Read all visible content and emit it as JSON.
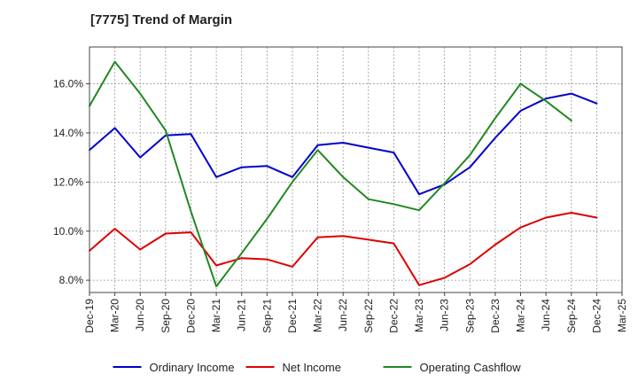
{
  "chart_data": {
    "type": "line",
    "title": "[7775]  Trend of Margin",
    "xlabel": "",
    "ylabel": "",
    "categories": [
      "Dec-19",
      "Mar-20",
      "Jun-20",
      "Sep-20",
      "Dec-20",
      "Mar-21",
      "Jun-21",
      "Sep-21",
      "Dec-21",
      "Mar-22",
      "Jun-22",
      "Sep-22",
      "Dec-22",
      "Mar-23",
      "Jun-23",
      "Sep-23",
      "Dec-23",
      "Mar-24",
      "Jun-24",
      "Sep-24",
      "Dec-24",
      "Mar-25"
    ],
    "ylim": [
      7.5,
      17.5
    ],
    "yticks": [
      8,
      10,
      12,
      14,
      16
    ],
    "ytick_labels": [
      "8.0%",
      "10.0%",
      "12.0%",
      "14.0%",
      "16.0%"
    ],
    "grid": true,
    "legend_position": "bottom",
    "series": [
      {
        "name": "Ordinary Income",
        "color": "#0000cc",
        "values": [
          13.3,
          14.2,
          13.0,
          13.9,
          13.95,
          12.2,
          12.6,
          12.65,
          12.2,
          13.5,
          13.6,
          13.4,
          13.2,
          11.5,
          11.9,
          12.6,
          13.8,
          14.9,
          15.4,
          15.6,
          15.2,
          null
        ]
      },
      {
        "name": "Net Income",
        "color": "#dd0000",
        "values": [
          9.2,
          10.1,
          9.25,
          9.9,
          9.95,
          8.6,
          8.9,
          8.85,
          8.55,
          9.75,
          9.8,
          9.65,
          9.5,
          7.8,
          8.1,
          8.65,
          9.45,
          10.15,
          10.55,
          10.75,
          10.55,
          null
        ]
      },
      {
        "name": "Operating Cashflow",
        "color": "#228822",
        "values": [
          15.1,
          16.9,
          15.6,
          14.1,
          10.8,
          7.75,
          9.1,
          10.5,
          12.0,
          13.3,
          12.2,
          11.3,
          11.1,
          10.85,
          11.95,
          13.1,
          14.6,
          16.0,
          15.3,
          14.5,
          null,
          null
        ]
      }
    ]
  }
}
